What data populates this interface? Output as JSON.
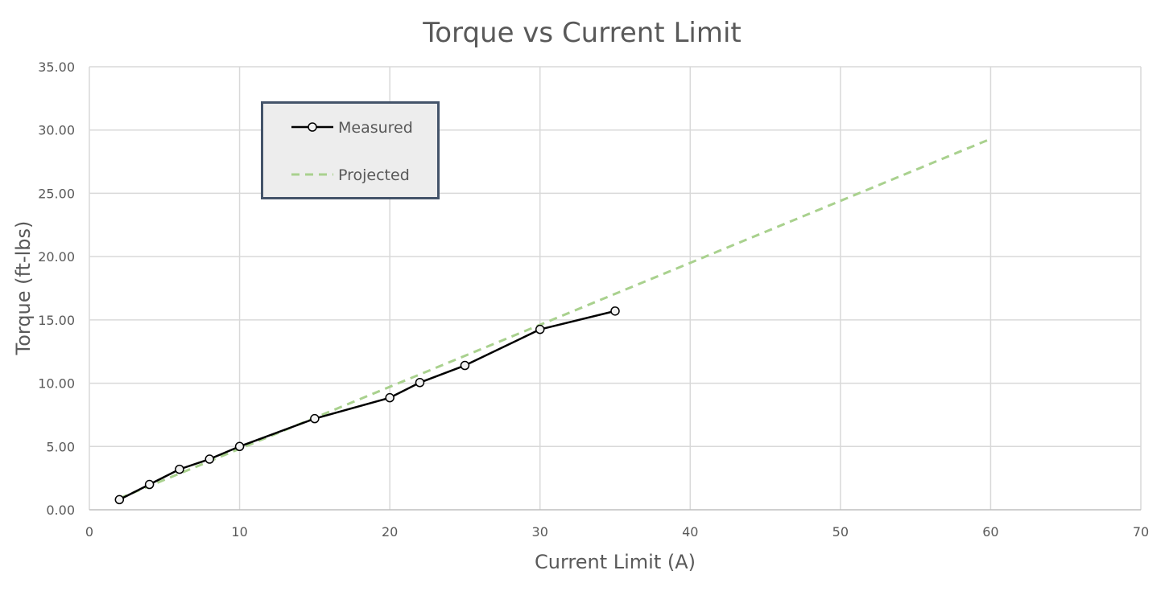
{
  "chart_data": {
    "type": "line",
    "title": "Torque vs Current Limit",
    "xlabel": "Current Limit (A)",
    "ylabel": "Torque (ft-lbs)",
    "xlim": [
      0,
      70
    ],
    "ylim": [
      0,
      35
    ],
    "x_ticks": [
      "0",
      "10",
      "20",
      "30",
      "40",
      "50",
      "60",
      "70"
    ],
    "x_tick_values": [
      0,
      10,
      20,
      30,
      40,
      50,
      60,
      70
    ],
    "y_ticks": [
      "0.00",
      "5.00",
      "10.00",
      "15.00",
      "20.00",
      "25.00",
      "30.00",
      "35.00"
    ],
    "y_tick_values": [
      0,
      5,
      10,
      15,
      20,
      25,
      30,
      35
    ],
    "grid": true,
    "legend_position": "top-left",
    "series": [
      {
        "name": "Measured",
        "style": "solid-with-markers",
        "color": "#000000",
        "marker_fill": "#f2f2f2",
        "x": [
          2,
          4,
          6,
          8,
          10,
          15,
          20,
          22,
          25,
          30,
          35
        ],
        "y": [
          0.8,
          2.0,
          3.2,
          4.0,
          5.0,
          7.2,
          8.85,
          10.05,
          11.4,
          14.25,
          15.7
        ]
      },
      {
        "name": "Projected",
        "style": "dashed",
        "color": "#a9d18e",
        "x": [
          2,
          60
        ],
        "y": [
          0.9,
          29.3
        ]
      }
    ]
  }
}
